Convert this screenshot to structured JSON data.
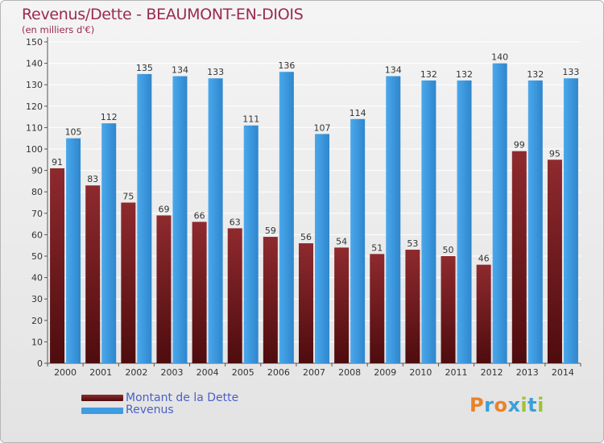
{
  "title": "Revenus/Dette - BEAUMONT-EN-DIOIS",
  "subtitle": "(en milliers d'€)",
  "logo": {
    "letters": [
      "P",
      "r",
      "o",
      "x",
      "i",
      "t",
      "i"
    ],
    "colors": [
      "#e8832a",
      "#3aa1d8",
      "#e8832a",
      "#3aa1d8",
      "#9cc23a",
      "#3aa1d8",
      "#9cc23a"
    ]
  },
  "legend": [
    {
      "label": "Montant de la Dette",
      "color": "#7d1e22"
    },
    {
      "label": "Revenus",
      "color": "#3f9be2"
    }
  ],
  "chart_data": {
    "type": "bar",
    "title": "Revenus/Dette - BEAUMONT-EN-DIOIS",
    "subtitle": "(en milliers d'€)",
    "categories": [
      "2000",
      "2001",
      "2002",
      "2003",
      "2004",
      "2005",
      "2006",
      "2007",
      "2008",
      "2009",
      "2010",
      "2011",
      "2012",
      "2013",
      "2014"
    ],
    "series": [
      {
        "name": "Montant de la Dette",
        "color": "#7d1e22",
        "values": [
          91,
          83,
          75,
          69,
          66,
          63,
          59,
          56,
          54,
          51,
          53,
          50,
          46,
          99,
          95
        ]
      },
      {
        "name": "Revenus",
        "color": "#3f9be2",
        "values": [
          105,
          112,
          135,
          134,
          133,
          111,
          136,
          107,
          114,
          134,
          132,
          132,
          140,
          132,
          133
        ]
      }
    ],
    "ylim": [
      0,
      150
    ],
    "yticks": [
      0,
      10,
      20,
      30,
      40,
      50,
      60,
      70,
      80,
      90,
      100,
      110,
      120,
      130,
      140,
      150
    ],
    "grid": true,
    "legend_position": "bottom-left"
  }
}
